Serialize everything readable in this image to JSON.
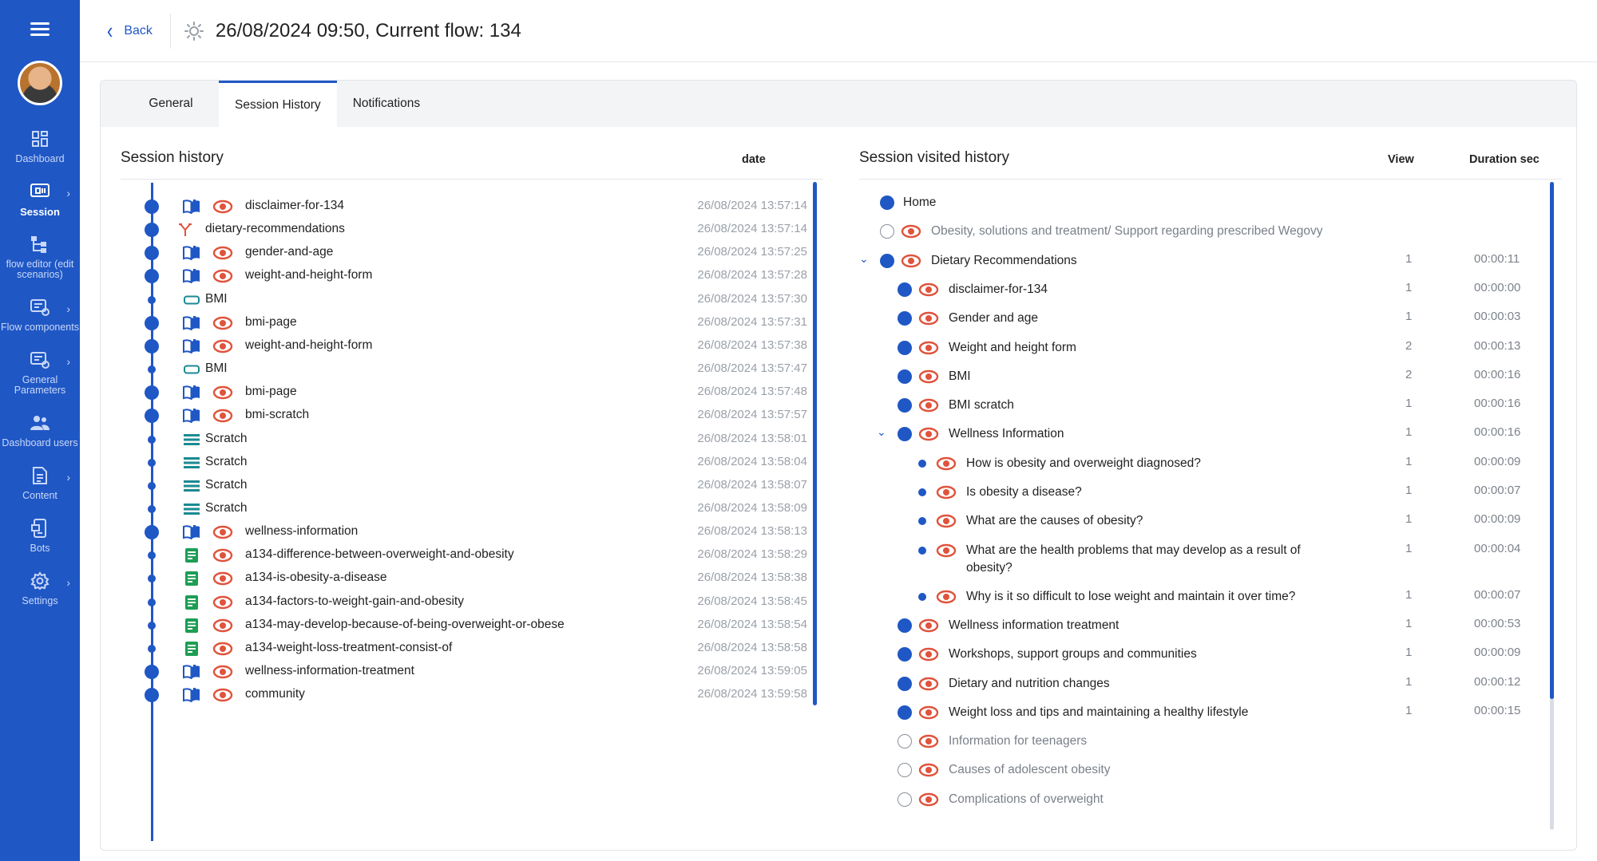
{
  "sidebar": {
    "items": [
      {
        "label": "Dashboard",
        "icon": "dashboard-icon",
        "chevron": false
      },
      {
        "label": "Session",
        "icon": "session-icon",
        "chevron": true,
        "active": true
      },
      {
        "label": "flow editor (edit scenarios)",
        "icon": "flow-editor-icon",
        "chevron": false
      },
      {
        "label": "Flow components",
        "icon": "flow-components-icon",
        "chevron": true
      },
      {
        "label": "General Parameters",
        "icon": "general-parameters-icon",
        "chevron": true
      },
      {
        "label": "Dashboard users",
        "icon": "users-icon",
        "chevron": false
      },
      {
        "label": "Content",
        "icon": "content-icon",
        "chevron": true
      },
      {
        "label": "Bots",
        "icon": "bots-icon",
        "chevron": false
      },
      {
        "label": "Settings",
        "icon": "gear-icon",
        "chevron": true
      }
    ]
  },
  "header": {
    "back_label": "Back",
    "title": "26/08/2024 09:50,  Current flow: 134"
  },
  "tabs": [
    "General",
    "Session History",
    "Notifications"
  ],
  "session_history": {
    "title": "Session history",
    "date_header": "date",
    "rows": [
      {
        "dot": "big",
        "icon": "book",
        "eye": true,
        "label": "disclaimer-for-134",
        "date": "26/08/2024 13:57:14"
      },
      {
        "dot": "big",
        "icon": "split",
        "eye": false,
        "label": "dietary-recommendations",
        "date": "26/08/2024 13:57:14"
      },
      {
        "dot": "big",
        "icon": "book",
        "eye": true,
        "label": "gender-and-age",
        "date": "26/08/2024 13:57:25"
      },
      {
        "dot": "big",
        "icon": "book",
        "eye": true,
        "label": "weight-and-height-form",
        "date": "26/08/2024 13:57:28"
      },
      {
        "dot": "small",
        "icon": "rect",
        "eye": false,
        "label": "BMI",
        "date": "26/08/2024 13:57:30"
      },
      {
        "dot": "big",
        "icon": "book",
        "eye": true,
        "label": "bmi-page",
        "date": "26/08/2024 13:57:31"
      },
      {
        "dot": "big",
        "icon": "book",
        "eye": true,
        "label": "weight-and-height-form",
        "date": "26/08/2024 13:57:38"
      },
      {
        "dot": "small",
        "icon": "rect",
        "eye": false,
        "label": "BMI",
        "date": "26/08/2024 13:57:47"
      },
      {
        "dot": "big",
        "icon": "book",
        "eye": true,
        "label": "bmi-page",
        "date": "26/08/2024 13:57:48"
      },
      {
        "dot": "big",
        "icon": "book",
        "eye": true,
        "label": "bmi-scratch",
        "date": "26/08/2024 13:57:57"
      },
      {
        "dot": "small",
        "icon": "lines",
        "eye": false,
        "label": "Scratch",
        "date": "26/08/2024 13:58:01"
      },
      {
        "dot": "small",
        "icon": "lines",
        "eye": false,
        "label": "Scratch",
        "date": "26/08/2024 13:58:04"
      },
      {
        "dot": "small",
        "icon": "lines",
        "eye": false,
        "label": "Scratch",
        "date": "26/08/2024 13:58:07"
      },
      {
        "dot": "small",
        "icon": "lines",
        "eye": false,
        "label": "Scratch",
        "date": "26/08/2024 13:58:09"
      },
      {
        "dot": "big",
        "icon": "book",
        "eye": true,
        "label": "wellness-information",
        "date": "26/08/2024 13:58:13"
      },
      {
        "dot": "small",
        "icon": "doc",
        "eye": true,
        "label": "a134-difference-between-overweight-and-obesity",
        "date": "26/08/2024 13:58:29"
      },
      {
        "dot": "small",
        "icon": "doc",
        "eye": true,
        "label": "a134-is-obesity-a-disease",
        "date": "26/08/2024 13:58:38"
      },
      {
        "dot": "small",
        "icon": "doc",
        "eye": true,
        "label": "a134-factors-to-weight-gain-and-obesity",
        "date": "26/08/2024 13:58:45"
      },
      {
        "dot": "small",
        "icon": "doc",
        "eye": true,
        "label": "a134-may-develop-because-of-being-overweight-or-obese",
        "date": "26/08/2024 13:58:54"
      },
      {
        "dot": "small",
        "icon": "doc",
        "eye": true,
        "label": "a134-weight-loss-treatment-consist-of",
        "date": "26/08/2024 13:58:58"
      },
      {
        "dot": "big",
        "icon": "book",
        "eye": true,
        "label": "wellness-information-treatment",
        "date": "26/08/2024 13:59:05"
      },
      {
        "dot": "big",
        "icon": "book",
        "eye": true,
        "label": "community",
        "date": "26/08/2024 13:59:58"
      }
    ]
  },
  "visited_history": {
    "title": "Session visited history",
    "view_header": "View",
    "duration_header": "Duration sec",
    "rows": [
      {
        "level": 0,
        "dot": "filled",
        "eye": false,
        "caret": false,
        "label": "Home",
        "view": "",
        "duration": "",
        "muted": false
      },
      {
        "level": 0,
        "dot": "hollow",
        "eye": true,
        "caret": false,
        "label": "Obesity, solutions and treatment/ Support regarding prescribed Wegovy",
        "view": "",
        "duration": "",
        "muted": true
      },
      {
        "level": 0,
        "dot": "filled",
        "eye": true,
        "caret": true,
        "label": "Dietary Recommendations",
        "view": "1",
        "duration": "00:00:11",
        "muted": false
      },
      {
        "level": 1,
        "dot": "filled",
        "eye": true,
        "caret": false,
        "label": "disclaimer-for-134",
        "view": "1",
        "duration": "00:00:00",
        "muted": false
      },
      {
        "level": 1,
        "dot": "filled",
        "eye": true,
        "caret": false,
        "label": "Gender and age",
        "view": "1",
        "duration": "00:00:03",
        "muted": false
      },
      {
        "level": 1,
        "dot": "filled",
        "eye": true,
        "caret": false,
        "label": "Weight and height form",
        "view": "2",
        "duration": "00:00:13",
        "muted": false
      },
      {
        "level": 1,
        "dot": "filled",
        "eye": true,
        "caret": false,
        "label": "BMI",
        "view": "2",
        "duration": "00:00:16",
        "muted": false
      },
      {
        "level": 1,
        "dot": "filled",
        "eye": true,
        "caret": false,
        "label": "BMI scratch",
        "view": "1",
        "duration": "00:00:16",
        "muted": false
      },
      {
        "level": 1,
        "dot": "filled",
        "eye": true,
        "caret": true,
        "label": "Wellness Information",
        "view": "1",
        "duration": "00:00:16",
        "muted": false
      },
      {
        "level": 2,
        "dot": "filled",
        "eye": true,
        "caret": false,
        "label": "How is obesity and overweight diagnosed?",
        "view": "1",
        "duration": "00:00:09",
        "muted": false
      },
      {
        "level": 2,
        "dot": "filled",
        "eye": true,
        "caret": false,
        "label": "Is obesity a disease?",
        "view": "1",
        "duration": "00:00:07",
        "muted": false
      },
      {
        "level": 2,
        "dot": "filled",
        "eye": true,
        "caret": false,
        "label": "What are the causes of obesity?",
        "view": "1",
        "duration": "00:00:09",
        "muted": false
      },
      {
        "level": 2,
        "dot": "filled",
        "eye": true,
        "caret": false,
        "label": "What are the health problems that may develop as a result of obesity?",
        "view": "1",
        "duration": "00:00:04",
        "muted": false,
        "tall": true
      },
      {
        "level": 2,
        "dot": "filled",
        "eye": true,
        "caret": false,
        "label": "Why is it so difficult to lose weight and maintain it over time?",
        "view": "1",
        "duration": "00:00:07",
        "muted": false
      },
      {
        "level": 1,
        "dot": "filled",
        "eye": true,
        "caret": false,
        "label": "Wellness information treatment",
        "view": "1",
        "duration": "00:00:53",
        "muted": false
      },
      {
        "level": 1,
        "dot": "filled",
        "eye": true,
        "caret": false,
        "label": "Workshops, support groups and communities",
        "view": "1",
        "duration": "00:00:09",
        "muted": false
      },
      {
        "level": 1,
        "dot": "filled",
        "eye": true,
        "caret": false,
        "label": "Dietary and nutrition changes",
        "view": "1",
        "duration": "00:00:12",
        "muted": false
      },
      {
        "level": 1,
        "dot": "filled",
        "eye": true,
        "caret": false,
        "label": "Weight loss and tips and maintaining a healthy lifestyle",
        "view": "1",
        "duration": "00:00:15",
        "muted": false
      },
      {
        "level": 1,
        "dot": "hollow",
        "eye": true,
        "caret": false,
        "label": "Information for teenagers",
        "view": "",
        "duration": "",
        "muted": true
      },
      {
        "level": 1,
        "dot": "hollow",
        "eye": true,
        "caret": false,
        "label": "Causes of adolescent obesity",
        "view": "",
        "duration": "",
        "muted": true
      },
      {
        "level": 1,
        "dot": "hollow",
        "eye": true,
        "caret": false,
        "label": "Complications of overweight",
        "view": "",
        "duration": "",
        "muted": true
      }
    ]
  },
  "colors": {
    "primary": "#1f57c5",
    "eye": "#e0533c",
    "green": "#1e9e55"
  }
}
